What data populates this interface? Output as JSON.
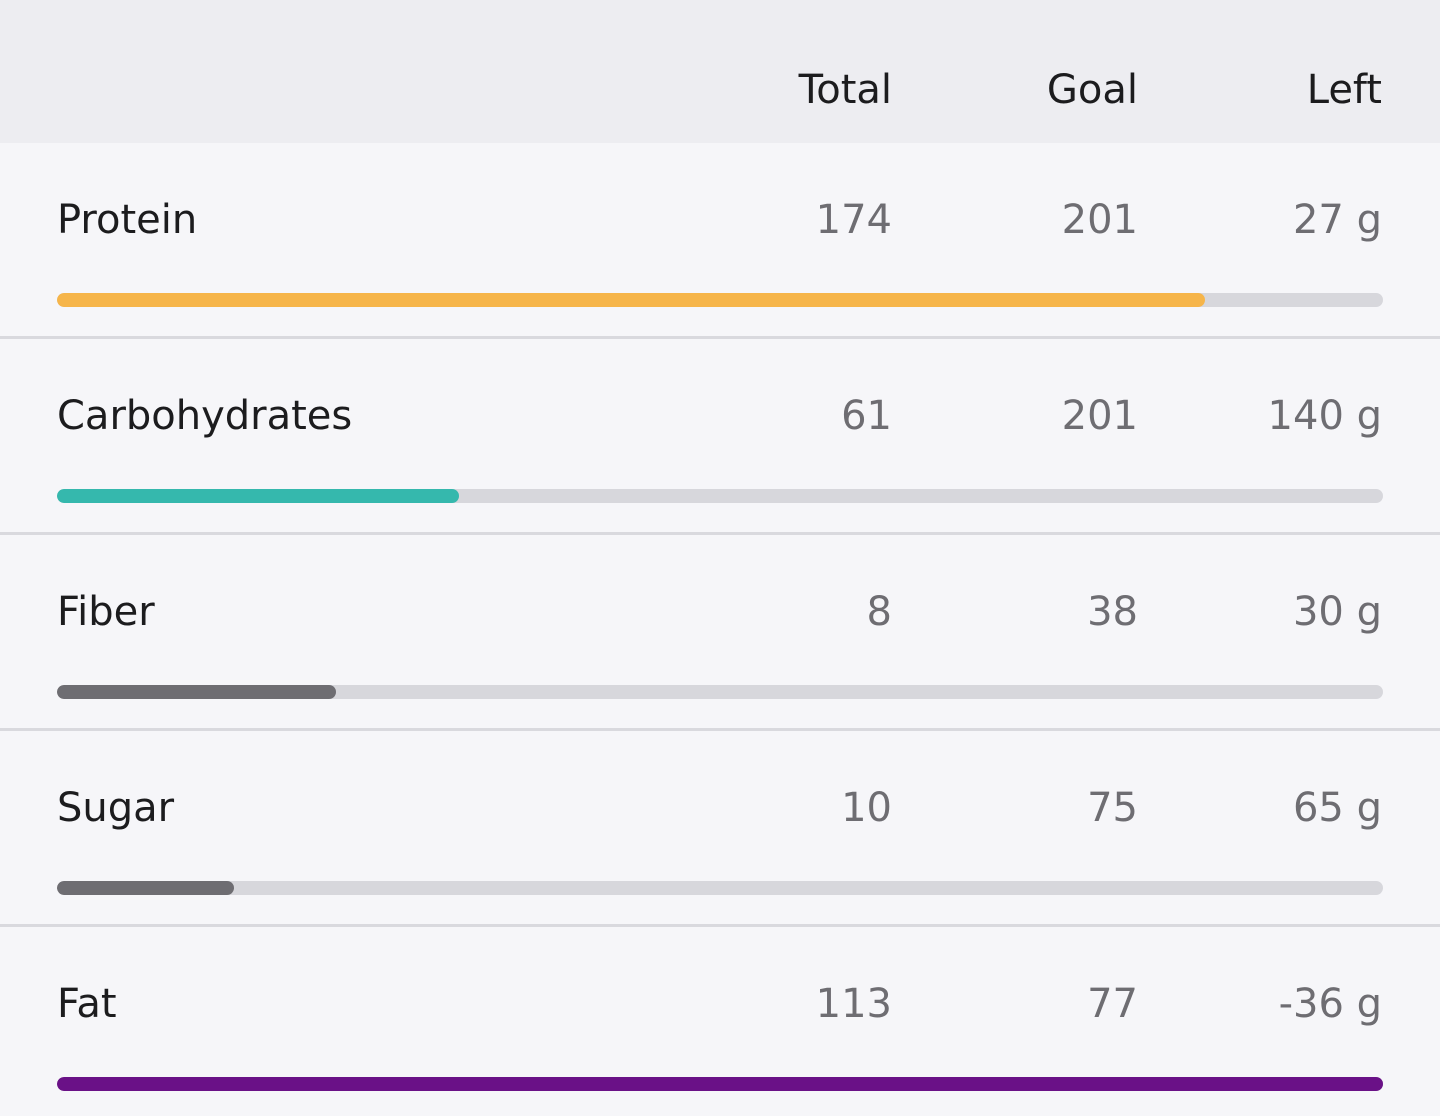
{
  "header": {
    "columns": [
      "Total",
      "Goal",
      "Left"
    ]
  },
  "rows": [
    {
      "name": "Protein",
      "total": 174,
      "goal": 201,
      "left": "27 g",
      "color": "#f6b54a"
    },
    {
      "name": "Carbohydrates",
      "total": 61,
      "goal": 201,
      "left": "140 g",
      "color": "#35b8ad"
    },
    {
      "name": "Fiber",
      "total": 8,
      "goal": 38,
      "left": "30 g",
      "color": "#6e6d72"
    },
    {
      "name": "Sugar",
      "total": 10,
      "goal": 75,
      "left": "65 g",
      "color": "#6e6d72"
    },
    {
      "name": "Fat",
      "total": 113,
      "goal": 77,
      "left": "-36 g",
      "color": "#6a1187"
    }
  ]
}
